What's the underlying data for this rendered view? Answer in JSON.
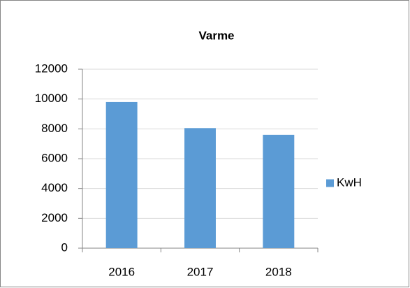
{
  "chart_data": {
    "type": "bar",
    "title": "Varme",
    "categories": [
      "2016",
      "2017",
      "2018"
    ],
    "series": [
      {
        "name": "KwH",
        "color": "#5b9bd5",
        "values": [
          9800,
          8050,
          7600
        ]
      }
    ],
    "ylim": [
      0,
      12000
    ],
    "yticks": [
      0,
      2000,
      4000,
      6000,
      8000,
      10000,
      12000
    ],
    "grid": true,
    "legend": "right"
  }
}
